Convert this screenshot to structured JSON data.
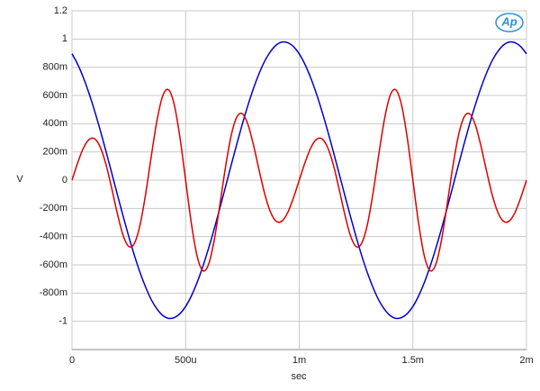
{
  "chart_data": {
    "type": "line",
    "xlabel": "sec",
    "ylabel": "V",
    "logo": "Ap",
    "x": [
      0,
      2.5e-05,
      5e-05,
      7.5e-05,
      0.0001,
      0.000125,
      0.00015,
      0.000175,
      0.0002,
      0.000225,
      0.00025,
      0.000275,
      0.0003,
      0.000325,
      0.00035,
      0.000375,
      0.0004,
      0.000425,
      0.00045,
      0.000475,
      0.0005,
      0.000525,
      0.00055,
      0.000575,
      0.0006,
      0.000625,
      0.00065,
      0.000675,
      0.0007,
      0.000725,
      0.00075,
      0.000775,
      0.0008,
      0.000825,
      0.00085,
      0.000875,
      0.0009,
      0.000925,
      0.00095,
      0.000975,
      0.001,
      0.001025,
      0.00105,
      0.001075,
      0.0011,
      0.001125,
      0.00115,
      0.001175,
      0.0012,
      0.001225,
      0.00125,
      0.001275,
      0.0013,
      0.001325,
      0.00135,
      0.001375,
      0.0014,
      0.001425,
      0.00145,
      0.001475,
      0.0015,
      0.001525,
      0.00155,
      0.001575,
      0.0016,
      0.001625,
      0.00165,
      0.001675,
      0.0017,
      0.001725,
      0.00175,
      0.001775,
      0.0018,
      0.001825,
      0.00185,
      0.001875,
      0.0019,
      0.001925,
      0.00195,
      0.001975,
      0.002
    ],
    "series": [
      {
        "color": "#0000cc",
        "values": [
          0.895,
          0.821,
          0.727,
          0.615,
          0.488,
          0.35,
          0.202,
          0.05,
          -0.104,
          -0.255,
          -0.4,
          -0.535,
          -0.657,
          -0.762,
          -0.85,
          -0.915,
          -0.959,
          -0.979,
          -0.974,
          -0.946,
          -0.895,
          -0.821,
          -0.727,
          -0.615,
          -0.488,
          -0.35,
          -0.202,
          -0.05,
          0.104,
          0.255,
          0.4,
          0.535,
          0.657,
          0.762,
          0.85,
          0.915,
          0.959,
          0.979,
          0.974,
          0.946,
          0.895,
          0.821,
          0.727,
          0.615,
          0.488,
          0.35,
          0.202,
          0.05,
          -0.104,
          -0.255,
          -0.4,
          -0.535,
          -0.657,
          -0.762,
          -0.85,
          -0.915,
          -0.959,
          -0.979,
          -0.974,
          -0.946,
          -0.895,
          -0.821,
          -0.727,
          -0.615,
          -0.488,
          -0.35,
          -0.202,
          -0.05,
          0.104,
          0.255,
          0.4,
          0.535,
          0.657,
          0.762,
          0.85,
          0.915,
          0.959,
          0.979,
          0.974,
          0.946,
          0.895
        ]
      },
      {
        "color": "#dd0000",
        "values": [
          0,
          0.123,
          0.227,
          0.288,
          0.293,
          0.232,
          0.109,
          -0.059,
          -0.24,
          -0.391,
          -0.47,
          -0.446,
          -0.313,
          -0.088,
          0.182,
          0.432,
          0.601,
          0.64,
          0.534,
          0.303,
          0,
          -0.303,
          -0.534,
          -0.64,
          -0.601,
          -0.432,
          -0.182,
          0.088,
          0.313,
          0.446,
          0.47,
          0.391,
          0.24,
          0.059,
          -0.109,
          -0.232,
          -0.293,
          -0.288,
          -0.227,
          -0.123,
          0,
          0.123,
          0.227,
          0.288,
          0.293,
          0.232,
          0.109,
          -0.059,
          -0.24,
          -0.391,
          -0.47,
          -0.446,
          -0.313,
          -0.088,
          0.182,
          0.432,
          0.601,
          0.64,
          0.534,
          0.303,
          0,
          -0.303,
          -0.534,
          -0.64,
          -0.601,
          -0.432,
          -0.182,
          0.088,
          0.313,
          0.446,
          0.47,
          0.391,
          0.24,
          0.059,
          -0.109,
          -0.232,
          -0.293,
          -0.288,
          -0.227,
          -0.123,
          0
        ]
      }
    ],
    "xlim": [
      0,
      0.002
    ],
    "xticks": [
      0,
      {
        "value": 0.0005,
        "label": "500u"
      },
      {
        "value": 0.001,
        "label": "1m"
      },
      {
        "value": 0.0015,
        "label": "1.5m"
      },
      {
        "value": 0.002,
        "label": "2m"
      }
    ],
    "ylim": [
      -1.2,
      1.2
    ],
    "yticks": [
      1.2,
      1,
      {
        "value": 0.8,
        "label": "800m"
      },
      {
        "value": 0.6,
        "label": "600m"
      },
      {
        "value": 0.4,
        "label": "400m"
      },
      {
        "value": 0.2,
        "label": "200m"
      },
      0,
      {
        "value": -0.2,
        "label": "-200m"
      },
      {
        "value": -0.4,
        "label": "-400m"
      },
      {
        "value": -0.6,
        "label": "-600m"
      },
      {
        "value": -0.8,
        "label": "-800m"
      },
      {
        "value": -1,
        "label": "-1"
      }
    ],
    "grid": true
  }
}
